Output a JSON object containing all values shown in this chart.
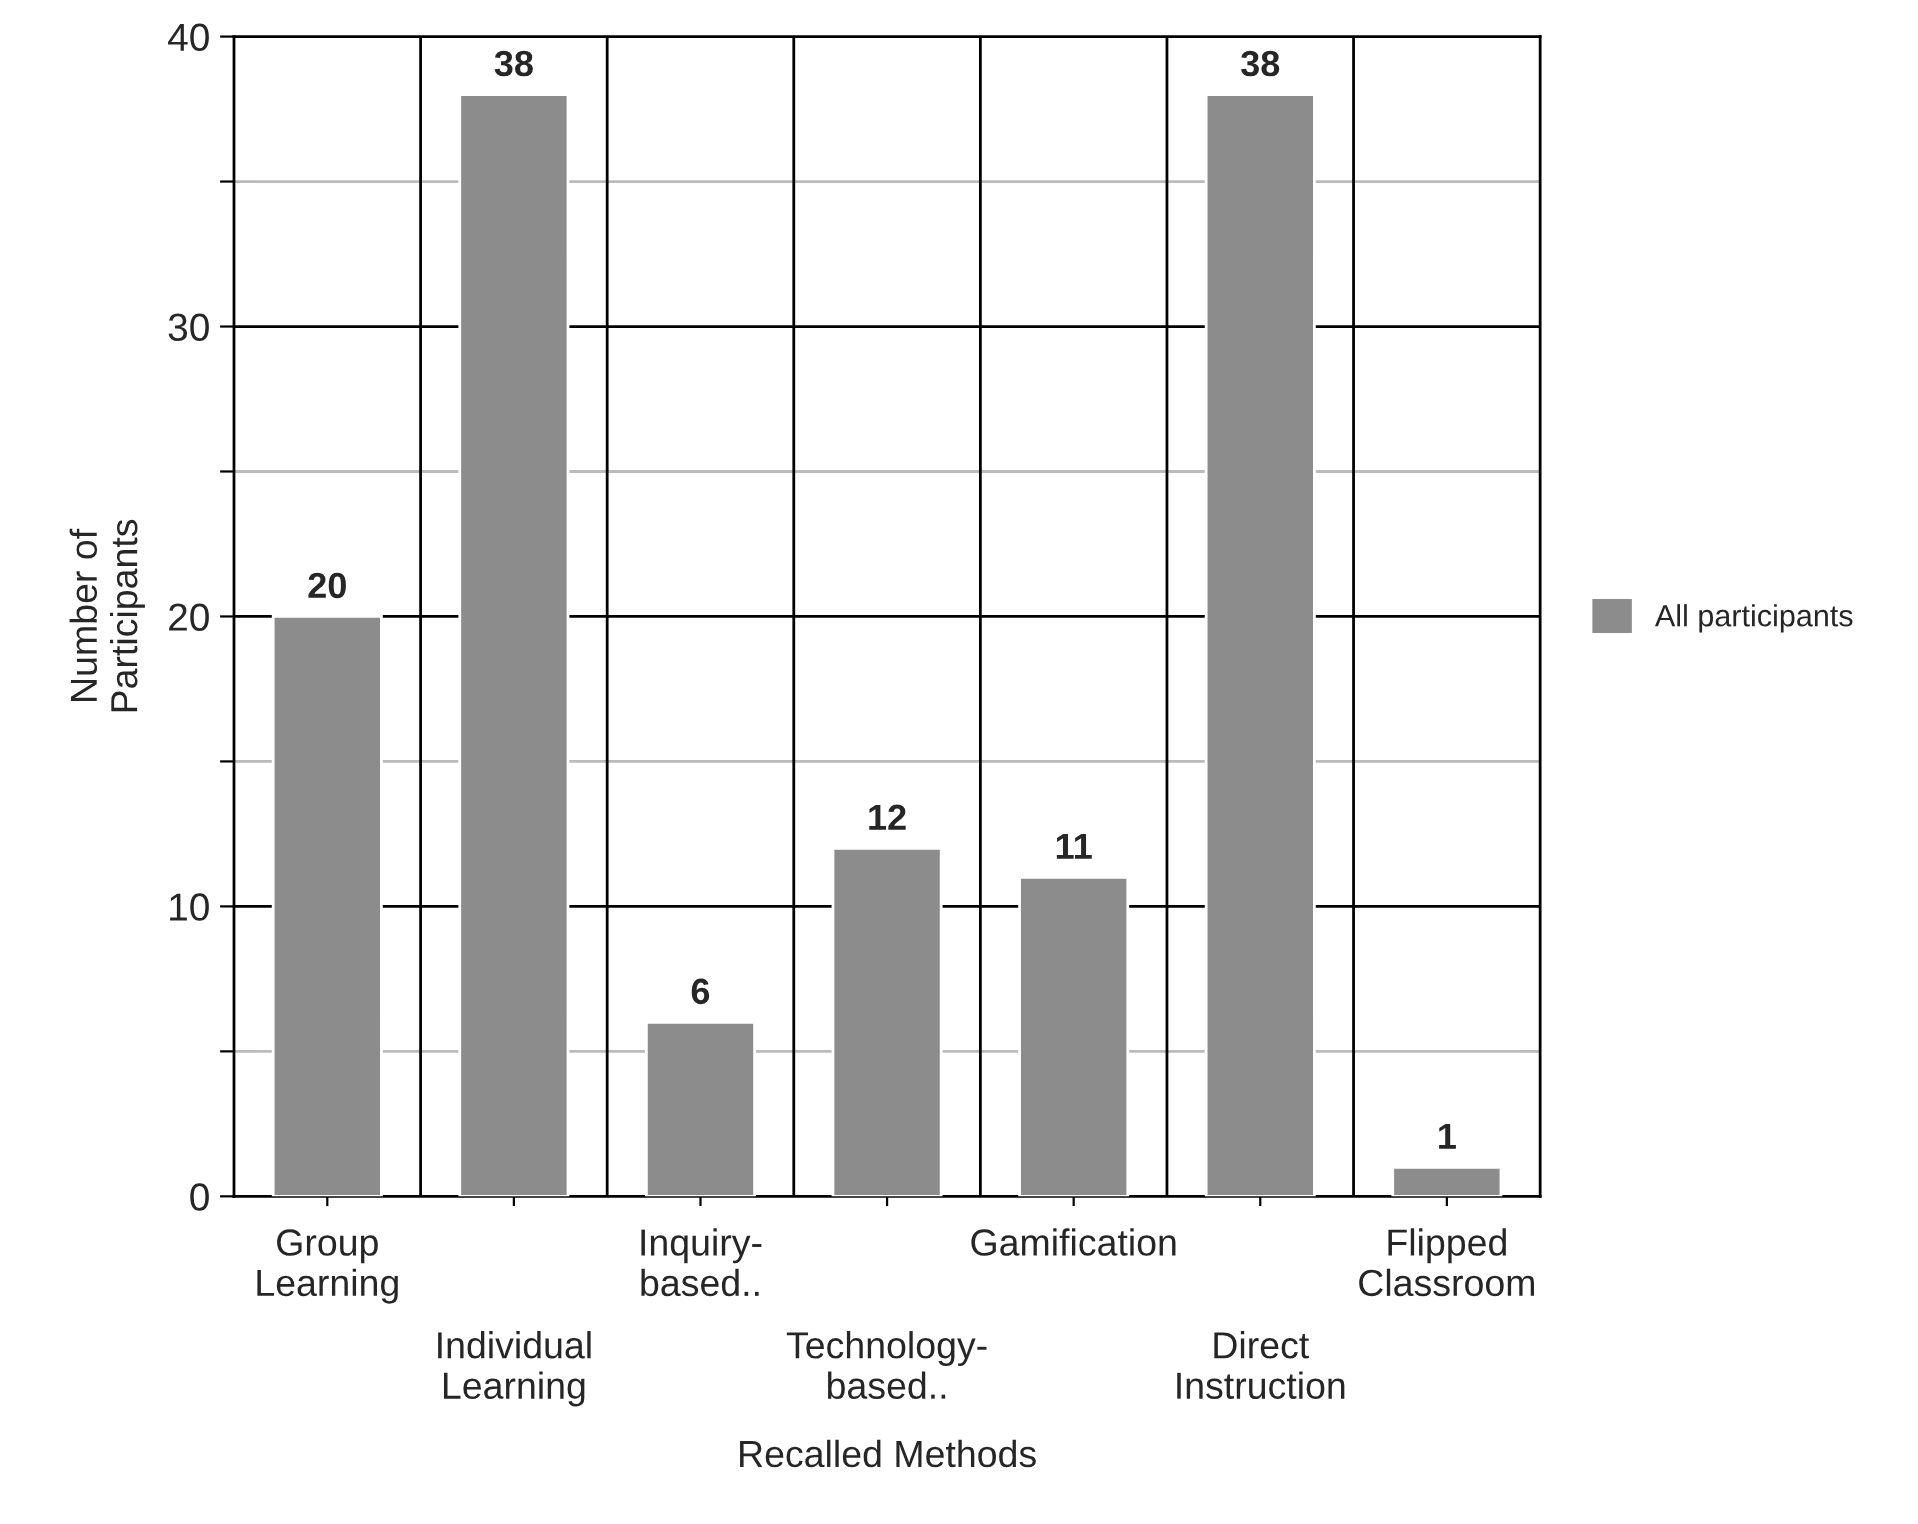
{
  "chart_data": {
    "type": "bar",
    "xlabel": "Recalled Methods",
    "ylabel": "Number of\nParticipants",
    "categories": [
      "Group\nLearning",
      "Individual\nLearning",
      "Inquiry-\nbased..",
      "Technology-\nbased..",
      "Gamification",
      "Direct\nInstruction",
      "Flipped\nClassroom"
    ],
    "series": [
      {
        "name": "All participants",
        "color": "#8c8c8c",
        "values": [
          20,
          38,
          6,
          12,
          11,
          38,
          1
        ]
      }
    ],
    "ylim": [
      0,
      40
    ],
    "yticks": [
      0,
      {
        "value": 5,
        "label": null
      },
      10,
      {
        "value": 15,
        "label": null
      },
      20,
      {
        "value": 25,
        "label": null
      },
      30,
      {
        "value": 35,
        "label": null
      },
      40
    ],
    "grid": true,
    "legend": "right",
    "data_labels": true
  }
}
